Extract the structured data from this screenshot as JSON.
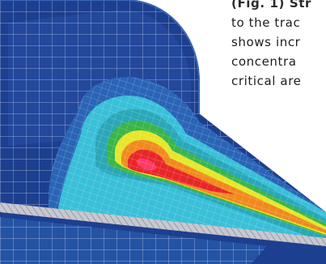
{
  "figure": {
    "image_name": "fea-stress-contour-render",
    "palette": {
      "background_white": "#ffffff",
      "low_stress_blue": "#1d3f8f",
      "mid_blue": "#2a64b6",
      "cyan": "#39c0d8",
      "teal": "#2aa7b8",
      "green": "#3ab54a",
      "yellow": "#e6e62a",
      "orange": "#f08a1e",
      "red": "#e8262a",
      "peak_pink": "#ff3a6a",
      "mesh_lines": "#e8eef8",
      "pad_stripe": "#c8c8d0"
    }
  },
  "caption": {
    "lines": [
      "(Fig. 1) Str",
      "to the trac",
      "shows incr",
      "concentra",
      "critical are"
    ]
  }
}
